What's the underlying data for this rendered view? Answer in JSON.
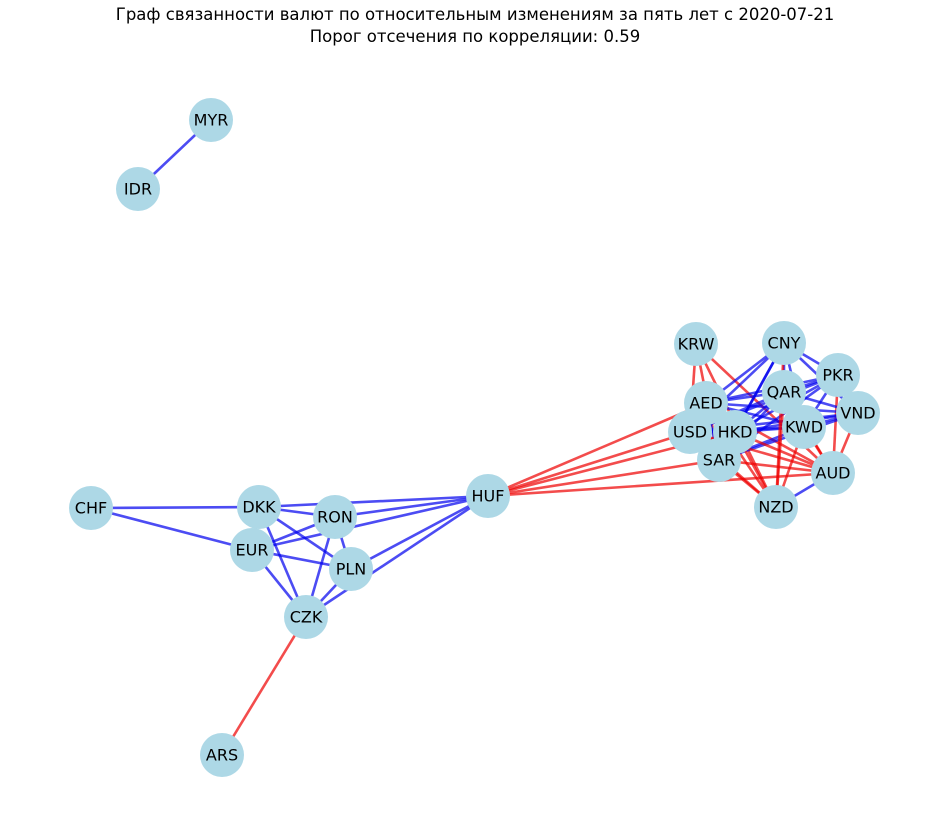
{
  "title": "Граф связанности валют по относительным изменениям за пять лет с 2020-07-21",
  "subtitle": "Порог отсечения по корреляции: 0.59",
  "colors": {
    "node": "#add8e6",
    "positive_edge": "#0000ee",
    "negative_edge": "#ee0000",
    "background": "#ffffff"
  },
  "nodes": [
    {
      "id": "MYR"
    },
    {
      "id": "IDR"
    },
    {
      "id": "KRW"
    },
    {
      "id": "CNY"
    },
    {
      "id": "PKR"
    },
    {
      "id": "QAR"
    },
    {
      "id": "AED"
    },
    {
      "id": "VND"
    },
    {
      "id": "KWD"
    },
    {
      "id": "HKD"
    },
    {
      "id": "USD"
    },
    {
      "id": "SAR"
    },
    {
      "id": "AUD"
    },
    {
      "id": "NZD"
    },
    {
      "id": "HUF"
    },
    {
      "id": "CHF"
    },
    {
      "id": "DKK"
    },
    {
      "id": "RON"
    },
    {
      "id": "EUR"
    },
    {
      "id": "PLN"
    },
    {
      "id": "CZK"
    },
    {
      "id": "ARS"
    }
  ],
  "edges": [
    {
      "source": "MYR",
      "target": "IDR",
      "sign": "positive"
    },
    {
      "source": "CHF",
      "target": "DKK",
      "sign": "positive"
    },
    {
      "source": "CHF",
      "target": "EUR",
      "sign": "positive"
    },
    {
      "source": "DKK",
      "target": "EUR",
      "sign": "positive"
    },
    {
      "source": "DKK",
      "target": "RON",
      "sign": "positive"
    },
    {
      "source": "DKK",
      "target": "PLN",
      "sign": "positive"
    },
    {
      "source": "DKK",
      "target": "CZK",
      "sign": "positive"
    },
    {
      "source": "DKK",
      "target": "HUF",
      "sign": "positive"
    },
    {
      "source": "EUR",
      "target": "RON",
      "sign": "positive"
    },
    {
      "source": "EUR",
      "target": "PLN",
      "sign": "positive"
    },
    {
      "source": "EUR",
      "target": "CZK",
      "sign": "positive"
    },
    {
      "source": "EUR",
      "target": "HUF",
      "sign": "positive"
    },
    {
      "source": "RON",
      "target": "PLN",
      "sign": "positive"
    },
    {
      "source": "RON",
      "target": "CZK",
      "sign": "positive"
    },
    {
      "source": "RON",
      "target": "HUF",
      "sign": "positive"
    },
    {
      "source": "PLN",
      "target": "CZK",
      "sign": "positive"
    },
    {
      "source": "PLN",
      "target": "HUF",
      "sign": "positive"
    },
    {
      "source": "CZK",
      "target": "HUF",
      "sign": "positive"
    },
    {
      "source": "CZK",
      "target": "ARS",
      "sign": "negative"
    },
    {
      "source": "HUF",
      "target": "AED",
      "sign": "negative"
    },
    {
      "source": "HUF",
      "target": "USD",
      "sign": "negative"
    },
    {
      "source": "HUF",
      "target": "HKD",
      "sign": "negative"
    },
    {
      "source": "HUF",
      "target": "SAR",
      "sign": "negative"
    },
    {
      "source": "HUF",
      "target": "AUD",
      "sign": "negative"
    },
    {
      "source": "KRW",
      "target": "SAR",
      "sign": "negative"
    },
    {
      "source": "KRW",
      "target": "USD",
      "sign": "negative"
    },
    {
      "source": "KRW",
      "target": "AUD",
      "sign": "negative"
    },
    {
      "source": "KRW",
      "target": "NZD",
      "sign": "negative"
    },
    {
      "source": "CNY",
      "target": "AED",
      "sign": "positive"
    },
    {
      "source": "CNY",
      "target": "USD",
      "sign": "positive"
    },
    {
      "source": "CNY",
      "target": "HKD",
      "sign": "positive"
    },
    {
      "source": "CNY",
      "target": "QAR",
      "sign": "positive"
    },
    {
      "source": "CNY",
      "target": "PKR",
      "sign": "positive"
    },
    {
      "source": "CNY",
      "target": "VND",
      "sign": "positive"
    },
    {
      "source": "CNY",
      "target": "KWD",
      "sign": "positive"
    },
    {
      "source": "CNY",
      "target": "SAR",
      "sign": "positive"
    },
    {
      "source": "PKR",
      "target": "AED",
      "sign": "positive"
    },
    {
      "source": "PKR",
      "target": "USD",
      "sign": "positive"
    },
    {
      "source": "PKR",
      "target": "HKD",
      "sign": "positive"
    },
    {
      "source": "PKR",
      "target": "QAR",
      "sign": "positive"
    },
    {
      "source": "PKR",
      "target": "KWD",
      "sign": "positive"
    },
    {
      "source": "PKR",
      "target": "VND",
      "sign": "positive"
    },
    {
      "source": "PKR",
      "target": "SAR",
      "sign": "positive"
    },
    {
      "source": "PKR",
      "target": "AUD",
      "sign": "negative"
    },
    {
      "source": "QAR",
      "target": "AED",
      "sign": "positive"
    },
    {
      "source": "QAR",
      "target": "USD",
      "sign": "positive"
    },
    {
      "source": "QAR",
      "target": "HKD",
      "sign": "positive"
    },
    {
      "source": "QAR",
      "target": "KWD",
      "sign": "positive"
    },
    {
      "source": "QAR",
      "target": "VND",
      "sign": "positive"
    },
    {
      "source": "QAR",
      "target": "SAR",
      "sign": "positive"
    },
    {
      "source": "AED",
      "target": "USD",
      "sign": "positive"
    },
    {
      "source": "AED",
      "target": "HKD",
      "sign": "positive"
    },
    {
      "source": "AED",
      "target": "KWD",
      "sign": "positive"
    },
    {
      "source": "AED",
      "target": "VND",
      "sign": "positive"
    },
    {
      "source": "AED",
      "target": "SAR",
      "sign": "positive"
    },
    {
      "source": "AED",
      "target": "AUD",
      "sign": "negative"
    },
    {
      "source": "AED",
      "target": "NZD",
      "sign": "negative"
    },
    {
      "source": "VND",
      "target": "USD",
      "sign": "positive"
    },
    {
      "source": "VND",
      "target": "HKD",
      "sign": "positive"
    },
    {
      "source": "VND",
      "target": "KWD",
      "sign": "positive"
    },
    {
      "source": "VND",
      "target": "SAR",
      "sign": "positive"
    },
    {
      "source": "KWD",
      "target": "USD",
      "sign": "positive"
    },
    {
      "source": "KWD",
      "target": "HKD",
      "sign": "positive"
    },
    {
      "source": "KWD",
      "target": "SAR",
      "sign": "positive"
    },
    {
      "source": "KWD",
      "target": "NZD",
      "sign": "negative"
    },
    {
      "source": "KWD",
      "target": "AUD",
      "sign": "negative"
    },
    {
      "source": "HKD",
      "target": "USD",
      "sign": "positive"
    },
    {
      "source": "HKD",
      "target": "SAR",
      "sign": "positive"
    },
    {
      "source": "HKD",
      "target": "AUD",
      "sign": "negative"
    },
    {
      "source": "HKD",
      "target": "NZD",
      "sign": "negative"
    },
    {
      "source": "USD",
      "target": "SAR",
      "sign": "positive"
    },
    {
      "source": "USD",
      "target": "AUD",
      "sign": "negative"
    },
    {
      "source": "USD",
      "target": "NZD",
      "sign": "negative"
    },
    {
      "source": "SAR",
      "target": "AUD",
      "sign": "negative"
    },
    {
      "source": "SAR",
      "target": "NZD",
      "sign": "negative"
    },
    {
      "source": "AUD",
      "target": "NZD",
      "sign": "positive"
    },
    {
      "source": "CNY",
      "target": "NZD",
      "sign": "negative"
    },
    {
      "source": "QAR",
      "target": "NZD",
      "sign": "negative"
    },
    {
      "source": "QAR",
      "target": "AUD",
      "sign": "negative"
    },
    {
      "source": "VND",
      "target": "AUD",
      "sign": "negative"
    }
  ]
}
